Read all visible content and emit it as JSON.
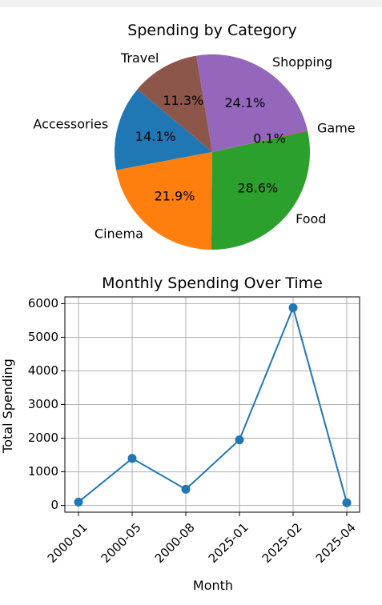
{
  "chart_data": [
    {
      "type": "pie",
      "title": "Spending by Category",
      "slices": [
        {
          "label": "Accessories",
          "pct_label": "14.1%",
          "value": 14.1,
          "color": "#1f77b4"
        },
        {
          "label": "Cinema",
          "pct_label": "21.9%",
          "value": 21.9,
          "color": "#ff7f0e"
        },
        {
          "label": "Food",
          "pct_label": "28.6%",
          "value": 28.6,
          "color": "#2ca02c"
        },
        {
          "label": "Game",
          "pct_label": "0.1%",
          "value": 0.1,
          "color": "#d62728"
        },
        {
          "label": "Shopping",
          "pct_label": "24.1%",
          "value": 24.1,
          "color": "#9467bd"
        },
        {
          "label": "Travel",
          "pct_label": "11.3%",
          "value": 11.3,
          "color": "#8c564b"
        }
      ],
      "start_angle_deg": 140,
      "direction": "counterclockwise"
    },
    {
      "type": "line",
      "title": "Monthly Spending Over Time",
      "xlabel": "Month",
      "ylabel": "Total Spending",
      "x": [
        "2000-01",
        "2000-05",
        "2000-08",
        "2025-01",
        "2025-02",
        "2025-04"
      ],
      "y": [
        100,
        1400,
        480,
        1950,
        5880,
        80
      ],
      "yticks": [
        0,
        1000,
        2000,
        3000,
        4000,
        5000,
        6000
      ],
      "ylim": [
        -200,
        6200
      ],
      "grid": true,
      "color": "#1f77b4",
      "marker": "circle"
    }
  ]
}
